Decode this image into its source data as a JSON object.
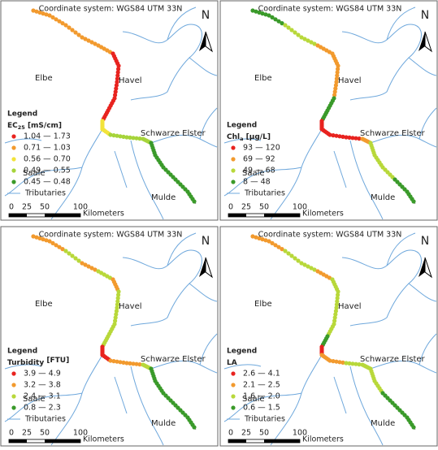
{
  "panels": [
    {
      "coordinate_system": "Coordinate system: WGS84 UTM 33N",
      "north": "N",
      "places": [
        "Havel",
        "Elbe",
        "Schwarze Elster",
        "Saale",
        "Mulde"
      ],
      "legend": {
        "title": "Legend",
        "variable": {
          "main": "EC",
          "sub": "25",
          "unit": " [mS/cm]"
        },
        "classes": [
          {
            "label": "1.04 — 1.73",
            "color": "#e8231f"
          },
          {
            "label": "0.71 — 1.03",
            "color": "#f29a2e"
          },
          {
            "label": "0.56 — 0.70",
            "color": "#f2e33a"
          },
          {
            "label": "0.49 — 0.55",
            "color": "#a6d43a"
          },
          {
            "label": "0.45 — 0.48",
            "color": "#3a9a2a"
          }
        ],
        "tributaries": "Tributaries"
      },
      "scale": {
        "ticks": [
          "0",
          "25",
          "50",
          "100"
        ],
        "unit": "Kilometers"
      }
    },
    {
      "coordinate_system": "Coordinate system: WGS84 UTM 33N",
      "north": "N",
      "places": [
        "Havel",
        "Elbe",
        "Schwarze Elster",
        "Saale",
        "Mulde"
      ],
      "legend": {
        "title": "Legend",
        "variable": {
          "main": "Chl",
          "sub": "a",
          "unit": " [µg/L]"
        },
        "classes": [
          {
            "label": "93 — 120",
            "color": "#e8231f"
          },
          {
            "label": "69 — 92",
            "color": "#f29a2e"
          },
          {
            "label": "49 — 68",
            "color": "#b8d83a"
          },
          {
            "label": "8 — 48",
            "color": "#3a9a2a"
          }
        ],
        "tributaries": "Tributaries"
      },
      "scale": {
        "ticks": [
          "0",
          "25",
          "50",
          "100"
        ],
        "unit": "Kilometers"
      }
    },
    {
      "coordinate_system": "Coordinate system: WGS84 UTM 33N",
      "north": "N",
      "places": [
        "Havel",
        "Elbe",
        "Schwarze Elster",
        "Saale",
        "Mulde"
      ],
      "legend": {
        "title": "Legend",
        "variable": {
          "main": "Turbidity",
          "sub": "",
          "unit": " [FTU]"
        },
        "classes": [
          {
            "label": "3.9 — 4.9",
            "color": "#e8231f"
          },
          {
            "label": "3.2 — 3.8",
            "color": "#f29a2e"
          },
          {
            "label": "2.4 — 3.1",
            "color": "#b8d83a"
          },
          {
            "label": "0.8 — 2.3",
            "color": "#3a9a2a"
          }
        ],
        "tributaries": "Tributaries"
      },
      "scale": {
        "ticks": [
          "0",
          "25",
          "50",
          "100"
        ],
        "unit": "Kilometers"
      }
    },
    {
      "coordinate_system": "Coordinate system: WGS84 UTM 33N",
      "north": "N",
      "places": [
        "Havel",
        "Elbe",
        "Schwarze Elster",
        "Saale",
        "Mulde"
      ],
      "legend": {
        "title": "Legend",
        "variable": {
          "main": "LA",
          "sub": "",
          "unit": ""
        },
        "classes": [
          {
            "label": "2.6 — 4.1",
            "color": "#e8231f"
          },
          {
            "label": "2.1 — 2.5",
            "color": "#f29a2e"
          },
          {
            "label": "1.6 — 2.0",
            "color": "#b8d83a"
          },
          {
            "label": "0.6 — 1.5",
            "color": "#3a9a2a"
          }
        ],
        "tributaries": "Tributaries"
      },
      "scale": {
        "ticks": [
          "0",
          "25",
          "50",
          "100"
        ],
        "unit": "Kilometers"
      }
    }
  ]
}
